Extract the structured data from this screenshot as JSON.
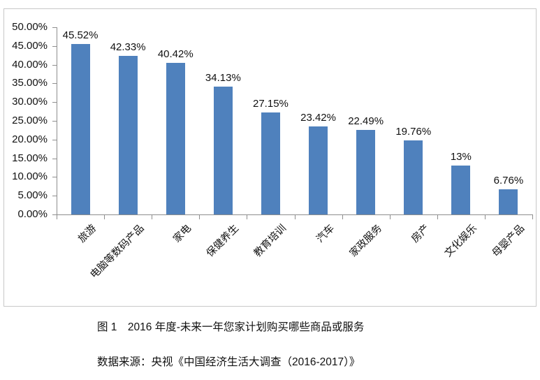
{
  "caption": {
    "title": "图 1　2016 年度-未来一年您家计划购买哪些商品或服务",
    "source": "数据来源：央视《中国经济生活大调查（2016-2017）》"
  },
  "colors": {
    "bar": "#4F81BD",
    "axis": "#8E8E8E",
    "frame_border": "#C8C8C8",
    "text": "#111111"
  },
  "chart_data": {
    "type": "bar",
    "categories": [
      "旅游",
      "电脑等数码产品",
      "家电",
      "保健养生",
      "教育培训",
      "汽车",
      "家政服务",
      "房产",
      "文化娱乐",
      "母婴产品"
    ],
    "values": [
      45.52,
      42.33,
      40.42,
      34.13,
      27.15,
      23.42,
      22.49,
      19.76,
      13,
      6.76
    ],
    "value_labels": [
      "45.52%",
      "42.33%",
      "40.42%",
      "34.13%",
      "27.15%",
      "23.42%",
      "22.49%",
      "19.76%",
      "13%",
      "6.76%"
    ],
    "y_tick_values": [
      0,
      5,
      10,
      15,
      20,
      25,
      30,
      35,
      40,
      45,
      50
    ],
    "y_tick_labels": [
      "0.00%",
      "5.00%",
      "10.00%",
      "15.00%",
      "20.00%",
      "25.00%",
      "30.00%",
      "35.00%",
      "40.00%",
      "45.00%",
      "50.00%"
    ],
    "ylim": [
      0,
      50
    ],
    "grid": false,
    "legend": null,
    "title": "图 1　2016 年度-未来一年您家计划购买哪些商品或服务",
    "source": "数据来源：央视《中国经济生活大调查（2016-2017）》"
  }
}
